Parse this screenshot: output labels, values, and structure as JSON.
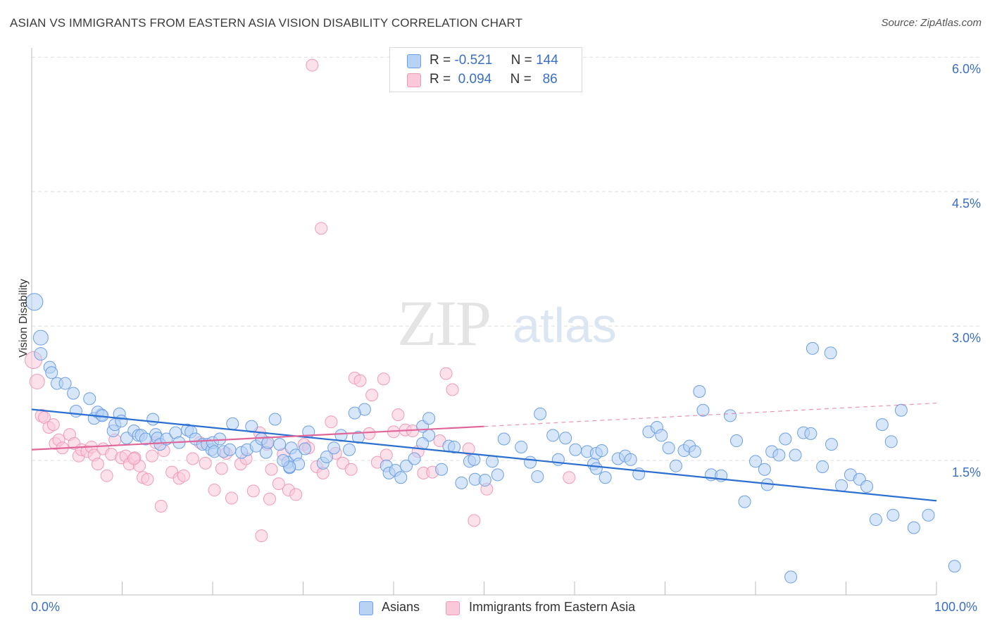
{
  "header": {
    "title": "ASIAN VS IMMIGRANTS FROM EASTERN ASIA VISION DISABILITY CORRELATION CHART",
    "source": "Source: ZipAtlas.com"
  },
  "watermark": {
    "zip": "ZIP",
    "atlas": "atlas"
  },
  "legend_stats": {
    "row1": {
      "r_label": "R =",
      "r_value": "-0.521",
      "n_label": "N =",
      "n_value": "144"
    },
    "row2": {
      "r_label": "R =",
      "r_value": "0.094",
      "n_label": "N =",
      "n_value": "86"
    }
  },
  "chart_data": {
    "type": "scatter",
    "title": "ASIAN VS IMMIGRANTS FROM EASTERN ASIA VISION DISABILITY CORRELATION CHART",
    "xlabel": "",
    "ylabel": "Vision Disability",
    "xlim": [
      0,
      100
    ],
    "ylim": [
      0,
      6.3
    ],
    "x_tick_labels": [
      "0.0%",
      "100.0%"
    ],
    "y_ticks": [
      1.5,
      3.0,
      4.5,
      6.0
    ],
    "y_tick_labels": [
      "1.5%",
      "3.0%",
      "4.5%",
      "6.0%"
    ],
    "grid": true,
    "legend_position": "bottom",
    "colors": {
      "asians": "#6b9fe6",
      "asians_line": "#2b6fd1",
      "immigrants": "#f09ab8",
      "immigrants_line": "#e0669a"
    },
    "series": [
      {
        "name": "Asians",
        "r": -0.521,
        "n": 144,
        "trend": {
          "x": [
            0,
            100
          ],
          "y": [
            2.07,
            1.05
          ]
        },
        "points": [
          [
            0.3,
            3.27
          ],
          [
            1,
            2.87
          ],
          [
            1,
            2.69
          ],
          [
            2,
            2.54
          ],
          [
            2.2,
            2.48
          ],
          [
            2.8,
            2.36
          ],
          [
            3.7,
            2.36
          ],
          [
            4.6,
            2.25
          ],
          [
            4.9,
            2.05
          ],
          [
            6.4,
            2.19
          ],
          [
            6.9,
            1.97
          ],
          [
            7.7,
            2.01
          ],
          [
            7.3,
            2.04
          ],
          [
            7.8,
            2.0
          ],
          [
            9,
            1.83
          ],
          [
            9.2,
            1.9
          ],
          [
            9.7,
            2.02
          ],
          [
            9.9,
            1.94
          ],
          [
            10.5,
            1.75
          ],
          [
            11.3,
            1.83
          ],
          [
            11.8,
            1.78
          ],
          [
            12.1,
            1.78
          ],
          [
            12.6,
            1.74
          ],
          [
            13.4,
            1.96
          ],
          [
            13.7,
            1.79
          ],
          [
            13.9,
            1.75
          ],
          [
            14.2,
            1.68
          ],
          [
            14.9,
            1.74
          ],
          [
            15.9,
            1.81
          ],
          [
            16.3,
            1.7
          ],
          [
            17.2,
            1.84
          ],
          [
            17.6,
            1.82
          ],
          [
            18.1,
            1.74
          ],
          [
            18.9,
            1.68
          ],
          [
            19.4,
            1.68
          ],
          [
            19.9,
            1.62
          ],
          [
            20,
            1.7
          ],
          [
            20.2,
            1.6
          ],
          [
            20.8,
            1.74
          ],
          [
            21.2,
            1.6
          ],
          [
            22.2,
            1.91
          ],
          [
            21.9,
            1.62
          ],
          [
            23.2,
            1.59
          ],
          [
            23.8,
            1.62
          ],
          [
            24.3,
            1.88
          ],
          [
            24.8,
            1.66
          ],
          [
            25.4,
            1.74
          ],
          [
            25.9,
            1.59
          ],
          [
            26.1,
            1.7
          ],
          [
            26.9,
            1.96
          ],
          [
            27.4,
            1.68
          ],
          [
            28.3,
            1.48
          ],
          [
            28.5,
            1.42
          ],
          [
            28.7,
            1.64
          ],
          [
            29.2,
            1.56
          ],
          [
            29.5,
            1.46
          ],
          [
            30.2,
            1.63
          ],
          [
            30.6,
            1.82
          ],
          [
            28.5,
            1.43
          ],
          [
            27.8,
            1.5
          ],
          [
            32.2,
            1.47
          ],
          [
            32.6,
            1.54
          ],
          [
            33.4,
            1.64
          ],
          [
            34.2,
            1.78
          ],
          [
            36.1,
            1.76
          ],
          [
            35.1,
            1.62
          ],
          [
            36.8,
            2.07
          ],
          [
            35.7,
            2.03
          ],
          [
            39.2,
            1.44
          ],
          [
            39.5,
            1.36
          ],
          [
            40.2,
            1.39
          ],
          [
            40.8,
            1.31
          ],
          [
            41.4,
            1.44
          ],
          [
            42.3,
            1.52
          ],
          [
            43.9,
            1.78
          ],
          [
            43.2,
            1.69
          ],
          [
            43.2,
            1.88
          ],
          [
            43.9,
            1.97
          ],
          [
            45.3,
            1.4
          ],
          [
            46.1,
            1.66
          ],
          [
            46.7,
            1.65
          ],
          [
            47.5,
            1.25
          ],
          [
            48.4,
            1.49
          ],
          [
            48.9,
            1.51
          ],
          [
            49,
            1.29
          ],
          [
            50.1,
            1.28
          ],
          [
            50.9,
            1.49
          ],
          [
            51.5,
            1.34
          ],
          [
            52.2,
            1.74
          ],
          [
            54.1,
            1.65
          ],
          [
            55.1,
            1.48
          ],
          [
            55.9,
            1.32
          ],
          [
            56.2,
            2.02
          ],
          [
            57.6,
            1.78
          ],
          [
            58.2,
            1.51
          ],
          [
            59,
            1.75
          ],
          [
            60.1,
            1.62
          ],
          [
            61.4,
            1.6
          ],
          [
            62.1,
            1.46
          ],
          [
            62.4,
            1.41
          ],
          [
            62.4,
            1.58
          ],
          [
            63,
            1.61
          ],
          [
            63.4,
            1.31
          ],
          [
            64.8,
            1.52
          ],
          [
            65.6,
            1.55
          ],
          [
            66.2,
            1.51
          ],
          [
            67.1,
            1.35
          ],
          [
            68.2,
            1.82
          ],
          [
            69.1,
            1.87
          ],
          [
            69.6,
            1.78
          ],
          [
            70.4,
            1.64
          ],
          [
            71.2,
            1.44
          ],
          [
            72.1,
            1.61
          ],
          [
            72.7,
            1.66
          ],
          [
            73.3,
            1.6
          ],
          [
            74.2,
            2.06
          ],
          [
            75.1,
            1.34
          ],
          [
            76.2,
            1.33
          ],
          [
            77.2,
            2.0
          ],
          [
            77.9,
            1.72
          ],
          [
            78.8,
            1.04
          ],
          [
            80,
            1.49
          ],
          [
            81,
            1.4
          ],
          [
            81.3,
            1.23
          ],
          [
            81.8,
            1.6
          ],
          [
            82.6,
            1.56
          ],
          [
            83.3,
            1.74
          ],
          [
            83.9,
            0.2
          ],
          [
            84.4,
            1.56
          ],
          [
            85.3,
            1.81
          ],
          [
            86.1,
            1.8
          ],
          [
            87.4,
            1.43
          ],
          [
            88.4,
            1.68
          ],
          [
            89.5,
            1.22
          ],
          [
            90.5,
            1.34
          ],
          [
            91.5,
            1.29
          ],
          [
            92.3,
            1.21
          ],
          [
            93.3,
            0.84
          ],
          [
            94,
            1.9
          ],
          [
            95.2,
            0.89
          ],
          [
            95,
            1.71
          ],
          [
            96.1,
            2.06
          ],
          [
            97.5,
            0.75
          ],
          [
            99.1,
            0.89
          ],
          [
            102,
            0.32
          ],
          [
            86.3,
            2.75
          ],
          [
            88.3,
            2.7
          ],
          [
            73.8,
            2.27
          ]
        ]
      },
      {
        "name": "Immigrants from Eastern Asia",
        "r": 0.094,
        "n": 86,
        "trend": {
          "x": [
            0,
            50
          ],
          "y": [
            1.62,
            1.88
          ],
          "dashed_extension": {
            "x": [
              50,
              100
            ],
            "y": [
              1.88,
              2.14
            ]
          }
        },
        "points": [
          [
            0.2,
            2.62
          ],
          [
            0.6,
            2.38
          ],
          [
            1.1,
            2.0
          ],
          [
            1.4,
            1.98
          ],
          [
            1.9,
            1.87
          ],
          [
            2.4,
            1.9
          ],
          [
            2.6,
            1.69
          ],
          [
            3,
            1.73
          ],
          [
            3.4,
            1.64
          ],
          [
            4.2,
            1.79
          ],
          [
            4.7,
            1.69
          ],
          [
            5.2,
            1.55
          ],
          [
            5.5,
            1.62
          ],
          [
            6.1,
            1.6
          ],
          [
            6.6,
            1.65
          ],
          [
            6.9,
            1.56
          ],
          [
            7.3,
            1.46
          ],
          [
            7.9,
            1.63
          ],
          [
            8.3,
            1.33
          ],
          [
            8.8,
            1.57
          ],
          [
            9.2,
            1.73
          ],
          [
            9.9,
            1.53
          ],
          [
            10.4,
            1.55
          ],
          [
            10.8,
            1.46
          ],
          [
            11.4,
            1.53
          ],
          [
            11.9,
            1.44
          ],
          [
            12.3,
            1.31
          ],
          [
            12.8,
            1.29
          ],
          [
            13.3,
            1.55
          ],
          [
            13.7,
            1.7
          ],
          [
            14.6,
            1.61
          ],
          [
            15.5,
            1.37
          ],
          [
            16.3,
            1.3
          ],
          [
            16.8,
            1.33
          ],
          [
            17.8,
            1.52
          ],
          [
            18.6,
            1.7
          ],
          [
            19.2,
            1.47
          ],
          [
            20.2,
            1.17
          ],
          [
            21,
            1.41
          ],
          [
            21.5,
            1.58
          ],
          [
            22.1,
            1.08
          ],
          [
            23.1,
            1.46
          ],
          [
            23.7,
            1.52
          ],
          [
            24.5,
            1.16
          ],
          [
            25.2,
            1.81
          ],
          [
            26,
            1.68
          ],
          [
            26.5,
            1.4
          ],
          [
            27.3,
            1.24
          ],
          [
            27.8,
            1.57
          ],
          [
            28.4,
            1.17
          ],
          [
            29.2,
            1.12
          ],
          [
            30.1,
            1.68
          ],
          [
            30.6,
            1.64
          ],
          [
            31.5,
            1.43
          ],
          [
            32.2,
            1.36
          ],
          [
            33.1,
            1.93
          ],
          [
            33.6,
            1.58
          ],
          [
            34.4,
            1.47
          ],
          [
            35.3,
            1.4
          ],
          [
            35.7,
            2.42
          ],
          [
            36.3,
            2.39
          ],
          [
            37.3,
            1.8
          ],
          [
            37.6,
            2.23
          ],
          [
            38.2,
            1.48
          ],
          [
            38.9,
            2.41
          ],
          [
            39.2,
            1.56
          ],
          [
            40,
            1.82
          ],
          [
            40.5,
            2.01
          ],
          [
            41.3,
            1.84
          ],
          [
            42.1,
            1.83
          ],
          [
            42.7,
            1.6
          ],
          [
            43.3,
            1.36
          ],
          [
            44.3,
            1.37
          ],
          [
            45.1,
            1.72
          ],
          [
            45.8,
            2.47
          ],
          [
            46.5,
            2.29
          ],
          [
            48.3,
            1.63
          ],
          [
            48.9,
            0.83
          ],
          [
            50.3,
            1.18
          ],
          [
            59.4,
            1.31
          ],
          [
            26.3,
            1.07
          ],
          [
            25.4,
            0.66
          ],
          [
            31,
            5.91
          ],
          [
            32,
            4.09
          ],
          [
            11.3,
            1.52
          ],
          [
            14.3,
            0.99
          ]
        ]
      }
    ]
  }
}
